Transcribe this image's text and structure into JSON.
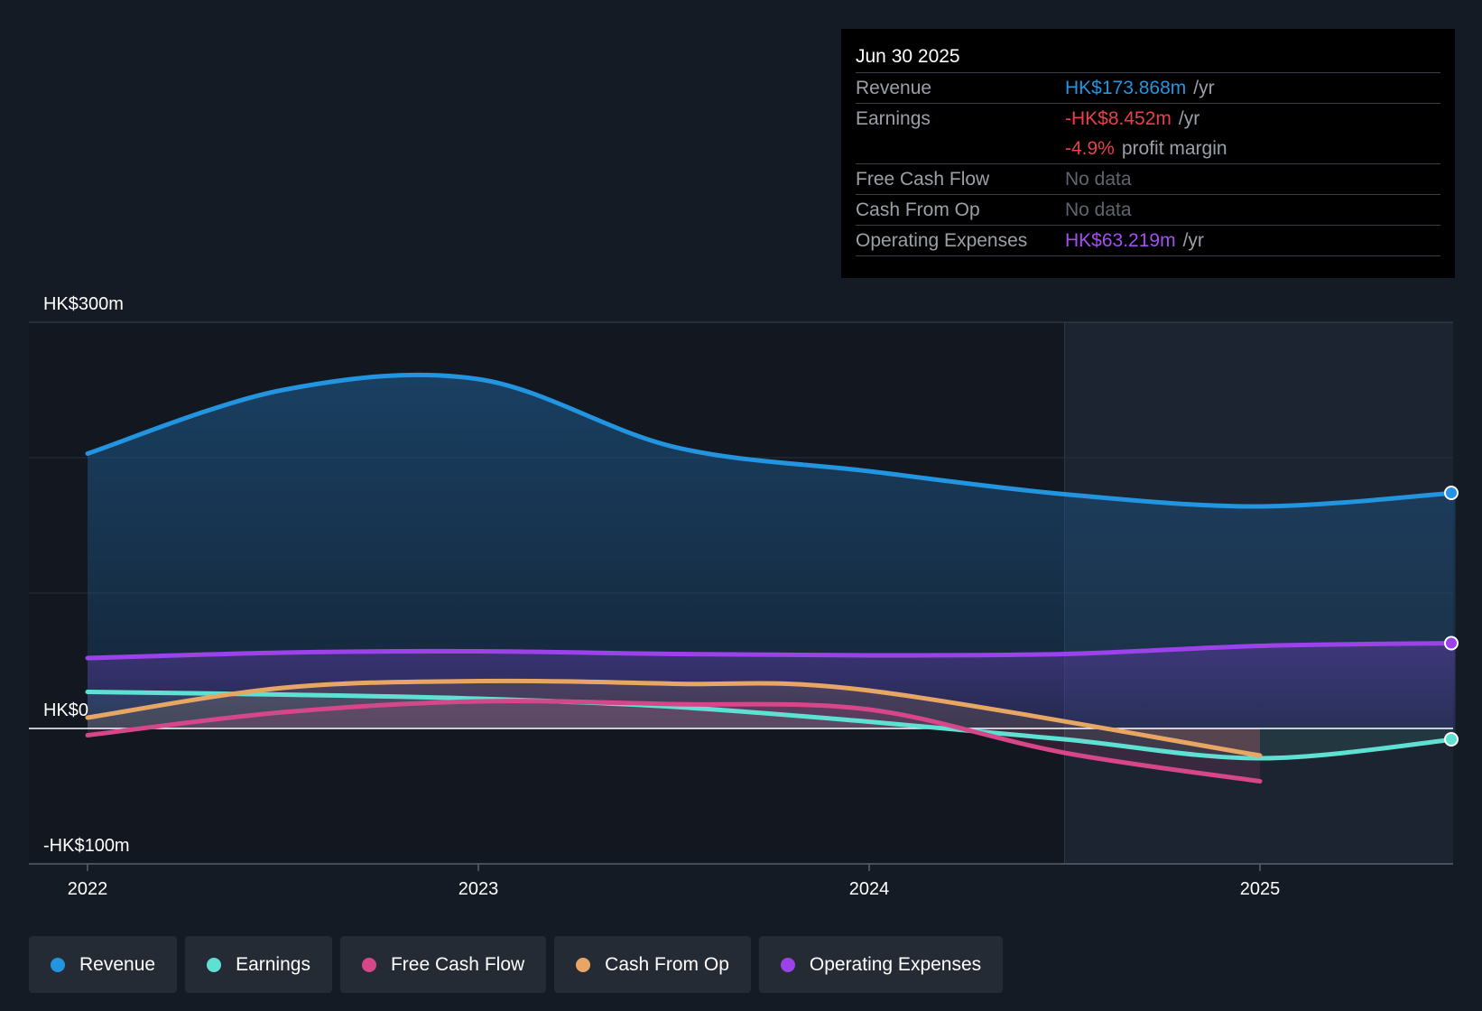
{
  "chart_data": {
    "type": "line",
    "y_unit": "HK$m",
    "ylim": [
      -100,
      300
    ],
    "y_tick_labels": [
      {
        "value": 300,
        "label": "HK$300m"
      },
      {
        "value": 0,
        "label": "HK$0"
      },
      {
        "value": -100,
        "label": "-HK$100m"
      }
    ],
    "x_tick_labels": [
      {
        "value": 2022.0,
        "label": "2022"
      },
      {
        "value": 2023.0,
        "label": "2023"
      },
      {
        "value": 2024.0,
        "label": "2024"
      },
      {
        "value": 2025.0,
        "label": "2025"
      }
    ],
    "xlim": [
      2021.85,
      2025.5
    ],
    "forecast_start": 2024.5,
    "series": [
      {
        "name": "Revenue",
        "color": "#2394e0",
        "x": [
          2022.0,
          2022.5,
          2023.0,
          2023.5,
          2024.0,
          2024.5,
          2025.0,
          2025.5
        ],
        "y": [
          203,
          250,
          258,
          208,
          190,
          173,
          164,
          174
        ]
      },
      {
        "name": "Operating Expenses",
        "color": "#9b42e8",
        "x": [
          2022.0,
          2022.5,
          2023.0,
          2023.5,
          2024.0,
          2024.5,
          2025.0,
          2025.5
        ],
        "y": [
          52,
          56,
          57,
          55,
          54,
          55,
          61,
          63
        ]
      },
      {
        "name": "Earnings",
        "color": "#5ee0d2",
        "x": [
          2022.0,
          2022.5,
          2023.0,
          2023.5,
          2024.0,
          2024.5,
          2025.0,
          2025.5
        ],
        "y": [
          27,
          25,
          22,
          16,
          5,
          -8,
          -22,
          -8
        ]
      },
      {
        "name": "Cash From Op",
        "color": "#e8a664",
        "x": [
          2022.0,
          2022.5,
          2023.0,
          2023.5,
          2024.0,
          2025.0
        ],
        "y": [
          8,
          30,
          35,
          33,
          28,
          -20
        ]
      },
      {
        "name": "Free Cash Flow",
        "color": "#d6478a",
        "x": [
          2022.0,
          2022.5,
          2023.0,
          2023.5,
          2024.0,
          2024.5,
          2025.0
        ],
        "y": [
          -5,
          12,
          20,
          18,
          14,
          -18,
          -39
        ]
      }
    ]
  },
  "tooltip": {
    "date": "Jun 30 2025",
    "rows": [
      {
        "label": "Revenue",
        "value": "HK$173.868m",
        "unit": "/yr",
        "color": "#2394e0"
      },
      {
        "label": "Earnings",
        "value": "-HK$8.452m",
        "unit": "/yr",
        "color": "#e8414b"
      },
      {
        "label": "",
        "value": "-4.9%",
        "unit": "profit margin",
        "color": "#e8414b"
      },
      {
        "label": "Free Cash Flow",
        "value": "No data",
        "unit": "",
        "color": "#5f656e"
      },
      {
        "label": "Cash From Op",
        "value": "No data",
        "unit": "",
        "color": "#5f656e"
      },
      {
        "label": "Operating Expenses",
        "value": "HK$63.219m",
        "unit": "/yr",
        "color": "#a24ff0"
      }
    ]
  },
  "legend": [
    {
      "label": "Revenue",
      "color": "#2394e0"
    },
    {
      "label": "Earnings",
      "color": "#5ee0d2"
    },
    {
      "label": "Free Cash Flow",
      "color": "#d6478a"
    },
    {
      "label": "Cash From Op",
      "color": "#e8a664"
    },
    {
      "label": "Operating Expenses",
      "color": "#9b42e8"
    }
  ]
}
